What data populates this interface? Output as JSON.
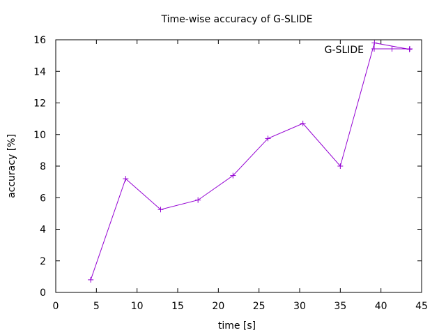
{
  "chart_data": {
    "type": "line",
    "title": "Time-wise accuracy of G-SLIDE",
    "xlabel": "time [s]",
    "ylabel": "accuracy [%]",
    "xlim": [
      0,
      45
    ],
    "ylim": [
      0,
      16
    ],
    "xticks": [
      0,
      5,
      10,
      15,
      20,
      25,
      30,
      35,
      40,
      45
    ],
    "yticks": [
      0,
      2,
      4,
      6,
      8,
      10,
      12,
      14,
      16
    ],
    "grid": false,
    "legend_position": "top-right",
    "series": [
      {
        "name": "G-SLIDE",
        "color": "#9400d3",
        "x": [
          4.3,
          8.6,
          12.9,
          17.5,
          21.8,
          26.1,
          30.4,
          35.0,
          39.2,
          43.5
        ],
        "y": [
          0.8,
          7.2,
          5.25,
          5.85,
          7.4,
          9.75,
          10.7,
          8.0,
          15.8,
          15.4
        ]
      }
    ]
  }
}
